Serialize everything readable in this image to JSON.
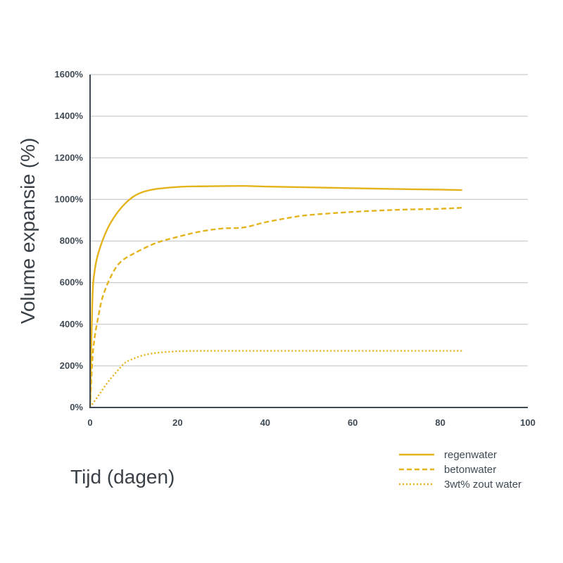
{
  "chart_data": {
    "type": "line",
    "xlabel": "Tijd (dagen)",
    "ylabel": "Volume expansie (%)",
    "xlim": [
      0,
      100
    ],
    "ylim": [
      0,
      1600
    ],
    "x_ticks": [
      "0",
      "20",
      "40",
      "60",
      "80",
      "100"
    ],
    "y_ticks": [
      "0%",
      "200%",
      "400%",
      "600%",
      "800%",
      "1000%",
      "1200%",
      "1400%",
      "1600%"
    ],
    "grid": "horizontal",
    "legend_position": "bottom-right",
    "series": [
      {
        "name": "regenwater",
        "style": "solid",
        "color": "#e5b31c",
        "points": [
          [
            0,
            0
          ],
          [
            0.5,
            500
          ],
          [
            1,
            650
          ],
          [
            2,
            750
          ],
          [
            4,
            860
          ],
          [
            6,
            930
          ],
          [
            8,
            980
          ],
          [
            10,
            1015
          ],
          [
            12,
            1035
          ],
          [
            15,
            1050
          ],
          [
            20,
            1060
          ],
          [
            25,
            1063
          ],
          [
            30,
            1064
          ],
          [
            35,
            1065
          ],
          [
            40,
            1062
          ],
          [
            50,
            1058
          ],
          [
            60,
            1054
          ],
          [
            70,
            1050
          ],
          [
            80,
            1047
          ],
          [
            85,
            1045
          ]
        ]
      },
      {
        "name": "betonwater",
        "style": "dashed",
        "color": "#e5b31c",
        "points": [
          [
            0,
            0
          ],
          [
            0.5,
            220
          ],
          [
            1,
            330
          ],
          [
            2,
            450
          ],
          [
            3,
            540
          ],
          [
            5,
            640
          ],
          [
            7,
            700
          ],
          [
            10,
            740
          ],
          [
            15,
            790
          ],
          [
            20,
            820
          ],
          [
            25,
            845
          ],
          [
            30,
            860
          ],
          [
            35,
            865
          ],
          [
            40,
            890
          ],
          [
            45,
            910
          ],
          [
            50,
            925
          ],
          [
            60,
            940
          ],
          [
            70,
            950
          ],
          [
            80,
            955
          ],
          [
            85,
            960
          ]
        ]
      },
      {
        "name": "3wt% zout water",
        "style": "dotted",
        "color": "#e5b31c",
        "points": [
          [
            0,
            0
          ],
          [
            2,
            60
          ],
          [
            4,
            120
          ],
          [
            6,
            170
          ],
          [
            8,
            215
          ],
          [
            10,
            235
          ],
          [
            12,
            250
          ],
          [
            15,
            262
          ],
          [
            20,
            270
          ],
          [
            25,
            272
          ],
          [
            30,
            272
          ],
          [
            40,
            272
          ],
          [
            50,
            272
          ],
          [
            60,
            272
          ],
          [
            70,
            272
          ],
          [
            80,
            272
          ],
          [
            85,
            272
          ]
        ]
      }
    ]
  }
}
